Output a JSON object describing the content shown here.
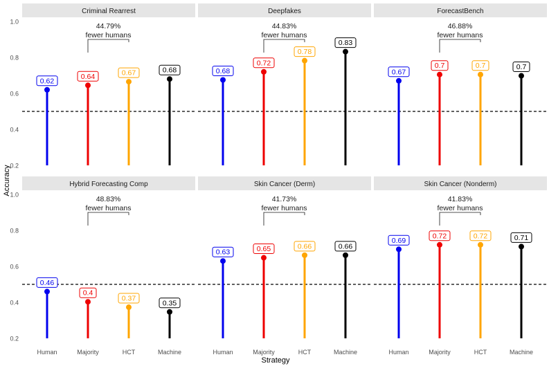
{
  "chart_data": {
    "type": "lollipop",
    "xlabel": "Strategy",
    "ylabel": "Accuracy",
    "ylim": [
      0.2,
      1.0
    ],
    "yticks": [
      0.2,
      0.4,
      0.6,
      0.8,
      1.0
    ],
    "ytick_labels": [
      "0.2",
      "0.4",
      "0.6",
      "0.8",
      "1.0"
    ],
    "categories": [
      "Human",
      "Majority",
      "HCT",
      "Machine"
    ],
    "colors": {
      "Human": "#0000ee",
      "Majority": "#ee0000",
      "HCT": "#ffa500",
      "Machine": "#000000",
      "strip": "#e5e5e5",
      "reference": "#000000"
    },
    "reference_line": 0.5,
    "grid": false,
    "facet_layout": "2 rows x 3 columns",
    "bracket_text_2": "fewer humans",
    "panels": [
      {
        "title": "Criminal Rearrest",
        "values": [
          0.62,
          0.645,
          0.665,
          0.68
        ],
        "labels": [
          "0.62",
          "0.64",
          "0.67",
          "0.68"
        ],
        "bracket_text_1": "44.79%"
      },
      {
        "title": "Deepfakes",
        "values": [
          0.675,
          0.72,
          0.782,
          0.832
        ],
        "labels": [
          "0.68",
          "0.72",
          "0.78",
          "0.83"
        ],
        "bracket_text_1": "44.83%"
      },
      {
        "title": "ForecastBench",
        "values": [
          0.67,
          0.705,
          0.705,
          0.698
        ],
        "labels": [
          "0.67",
          "0.7",
          "0.7",
          "0.7"
        ],
        "bracket_text_1": "46.88%"
      },
      {
        "title": "Hybrid Forecasting Comp",
        "values": [
          0.46,
          0.403,
          0.373,
          0.347
        ],
        "labels": [
          "0.46",
          "0.4",
          "0.37",
          "0.35"
        ],
        "bracket_text_1": "48.83%"
      },
      {
        "title": "Skin Cancer (Derm)",
        "values": [
          0.63,
          0.648,
          0.662,
          0.662
        ],
        "labels": [
          "0.63",
          "0.65",
          "0.66",
          "0.66"
        ],
        "bracket_text_1": "41.73%"
      },
      {
        "title": "Skin Cancer (Nonderm)",
        "values": [
          0.695,
          0.72,
          0.72,
          0.71
        ],
        "labels": [
          "0.69",
          "0.72",
          "0.72",
          "0.71"
        ],
        "bracket_text_1": "41.83%"
      }
    ]
  }
}
